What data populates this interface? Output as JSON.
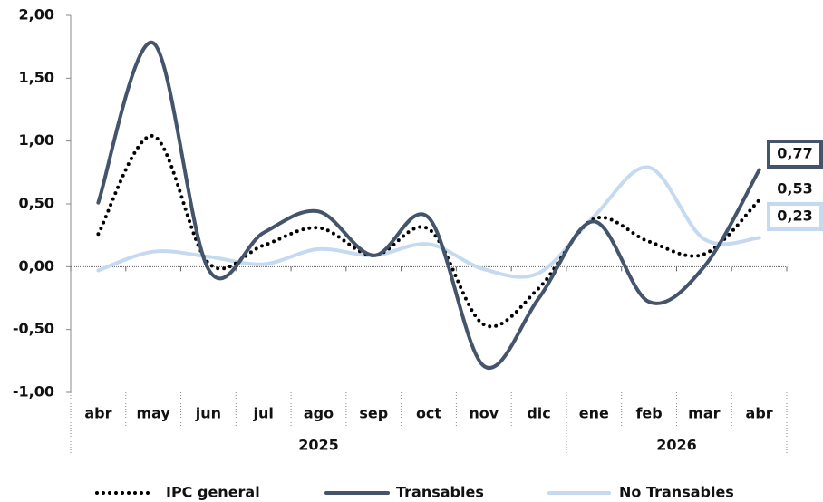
{
  "chart_data": {
    "type": "line",
    "categories": [
      "abr",
      "may",
      "jun",
      "jul",
      "ago",
      "sep",
      "oct",
      "nov",
      "dic",
      "ene",
      "feb",
      "mar",
      "abr"
    ],
    "category_groups": [
      {
        "label": "2025",
        "span": 9
      },
      {
        "label": "2026",
        "span": 4
      }
    ],
    "series": [
      {
        "name": "IPC general",
        "color": "#000000",
        "dash": "dotted",
        "values": [
          0.26,
          1.04,
          0.03,
          0.17,
          0.31,
          0.09,
          0.3,
          -0.46,
          -0.17,
          0.38,
          0.2,
          0.1,
          0.53
        ],
        "value_labels": [
          null,
          null,
          null,
          null,
          null,
          null,
          null,
          null,
          null,
          null,
          null,
          null,
          "0,53"
        ]
      },
      {
        "name": "Transables",
        "color": "#44546a",
        "dash": "solid",
        "values": [
          0.51,
          1.78,
          -0.02,
          0.27,
          0.44,
          0.09,
          0.39,
          -0.79,
          -0.25,
          0.36,
          -0.28,
          0.0,
          0.77
        ],
        "value_labels": [
          null,
          null,
          null,
          null,
          null,
          null,
          null,
          null,
          null,
          null,
          null,
          null,
          "0,77"
        ]
      },
      {
        "name": "No Transables",
        "color": "#c5d9f1",
        "dash": "solid",
        "values": [
          -0.03,
          0.12,
          0.08,
          0.02,
          0.14,
          0.09,
          0.18,
          -0.02,
          -0.05,
          0.4,
          0.79,
          0.22,
          0.23
        ],
        "value_labels": [
          null,
          null,
          null,
          null,
          null,
          null,
          null,
          null,
          null,
          null,
          null,
          null,
          "0,23"
        ]
      }
    ],
    "ylim": [
      -1,
      2
    ],
    "yticks": [
      {
        "value": -1,
        "label": "-1,00"
      },
      {
        "value": -0.5,
        "label": "-0,50"
      },
      {
        "value": 0,
        "label": "0,00"
      },
      {
        "value": 0.5,
        "label": "0,50"
      },
      {
        "value": 1,
        "label": "1,00"
      },
      {
        "value": 1.5,
        "label": "1,50"
      },
      {
        "value": 2,
        "label": "2,00"
      }
    ],
    "legend": "bottom"
  }
}
